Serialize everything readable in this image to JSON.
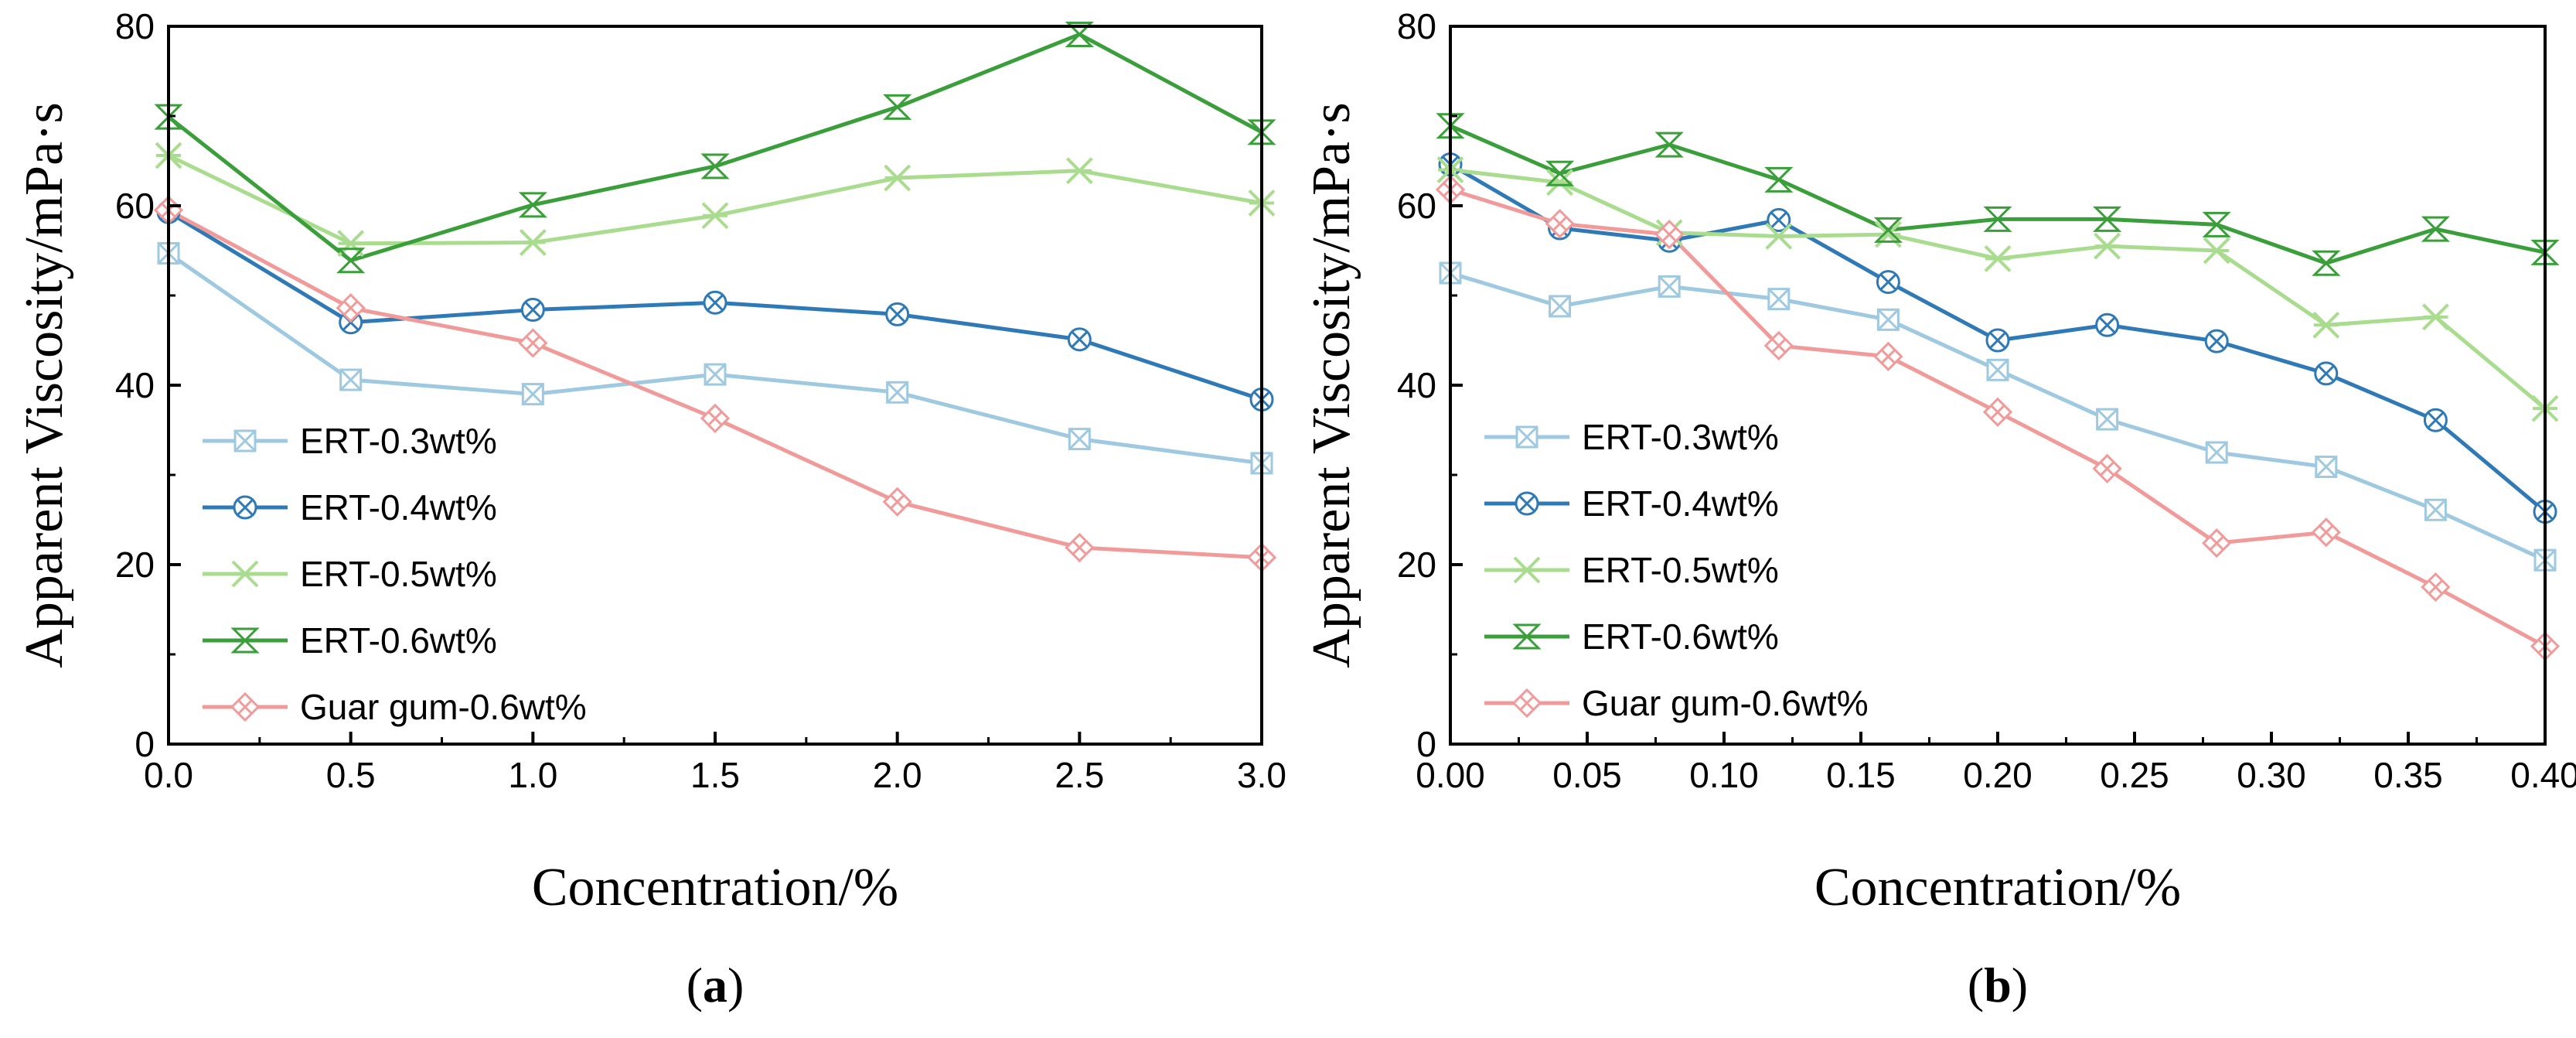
{
  "chart_data": [
    {
      "type": "line",
      "panel_label": "a",
      "xlabel": "Concentration/%",
      "ylabel": "Apparent Viscosity/mPa·s",
      "xlim": [
        0,
        3.0
      ],
      "ylim": [
        0,
        80
      ],
      "xticks": [
        0,
        0.5,
        1.0,
        1.5,
        2.0,
        2.5,
        3.0
      ],
      "xtick_labels": [
        "0.0",
        "0.5",
        "1.0",
        "1.5",
        "2.0",
        "2.5",
        "3.0"
      ],
      "yticks": [
        0,
        20,
        40,
        60,
        80
      ],
      "ytick_labels": [
        "0",
        "20",
        "40",
        "60",
        "80"
      ],
      "legend_position": "bottom-left",
      "x": [
        0,
        0.5,
        1.0,
        1.5,
        2.0,
        2.5,
        3.0
      ],
      "series": [
        {
          "name": "ERT-0.3wt%",
          "marker": "square-x",
          "color": "#9ec9e0",
          "values": [
            54.7,
            40.6,
            39.0,
            41.2,
            39.2,
            34.0,
            31.3
          ]
        },
        {
          "name": "ERT-0.4wt%",
          "marker": "circle-x",
          "color": "#2f7ab6",
          "values": [
            59.3,
            47.0,
            48.4,
            49.2,
            47.9,
            45.1,
            38.4
          ]
        },
        {
          "name": "ERT-0.5wt%",
          "marker": "star-x",
          "color": "#a9dc8e",
          "values": [
            65.6,
            55.8,
            55.9,
            58.9,
            63.1,
            63.9,
            60.3
          ]
        },
        {
          "name": "ERT-0.6wt%",
          "marker": "hourglass",
          "color": "#3a9e3a",
          "values": [
            69.9,
            53.9,
            60.1,
            64.4,
            71.0,
            79.1,
            68.2
          ]
        },
        {
          "name": "Guar gum-0.6wt%",
          "marker": "diamond-x",
          "color": "#f19a9a",
          "values": [
            59.5,
            48.6,
            44.7,
            36.3,
            27.0,
            21.9,
            20.8
          ]
        }
      ]
    },
    {
      "type": "line",
      "panel_label": "b",
      "xlabel": "Concentration/%",
      "ylabel": "Apparent Viscosity/mPa·s",
      "xlim": [
        0,
        0.4
      ],
      "ylim": [
        0,
        80
      ],
      "xticks": [
        0,
        0.05,
        0.1,
        0.15,
        0.2,
        0.25,
        0.3,
        0.35,
        0.4
      ],
      "xtick_labels": [
        "0.00",
        "0.05",
        "0.10",
        "0.15",
        "0.20",
        "0.25",
        "0.30",
        "0.35",
        "0.40"
      ],
      "yticks": [
        0,
        20,
        40,
        60,
        80
      ],
      "ytick_labels": [
        "0",
        "20",
        "40",
        "60",
        "80"
      ],
      "legend_position": "bottom-left",
      "x": [
        0,
        0.04,
        0.08,
        0.12,
        0.16,
        0.2,
        0.24,
        0.28,
        0.32,
        0.36,
        0.4
      ],
      "series": [
        {
          "name": "ERT-0.3wt%",
          "marker": "square-x",
          "color": "#9ec9e0",
          "values": [
            52.5,
            48.8,
            51.0,
            49.6,
            47.3,
            41.7,
            36.2,
            32.5,
            30.9,
            26.1,
            20.5
          ]
        },
        {
          "name": "ERT-0.4wt%",
          "marker": "circle-x",
          "color": "#2f7ab6",
          "values": [
            64.6,
            57.5,
            56.1,
            58.4,
            51.5,
            45.0,
            46.7,
            44.9,
            41.3,
            36.1,
            25.9
          ]
        },
        {
          "name": "ERT-0.5wt%",
          "marker": "star-x",
          "color": "#a9dc8e",
          "values": [
            64.0,
            62.6,
            57.0,
            56.6,
            56.8,
            54.1,
            55.5,
            55.0,
            46.7,
            47.6,
            37.4
          ]
        },
        {
          "name": "ERT-0.6wt%",
          "marker": "hourglass",
          "color": "#3a9e3a",
          "values": [
            68.9,
            63.6,
            66.8,
            62.9,
            57.3,
            58.5,
            58.5,
            57.9,
            53.6,
            57.4,
            54.8
          ]
        },
        {
          "name": "Guar gum-0.6wt%",
          "marker": "diamond-x",
          "color": "#f19a9a",
          "values": [
            61.8,
            58.0,
            56.8,
            44.4,
            43.2,
            37.0,
            30.7,
            22.4,
            23.6,
            17.5,
            10.9
          ]
        }
      ]
    }
  ]
}
